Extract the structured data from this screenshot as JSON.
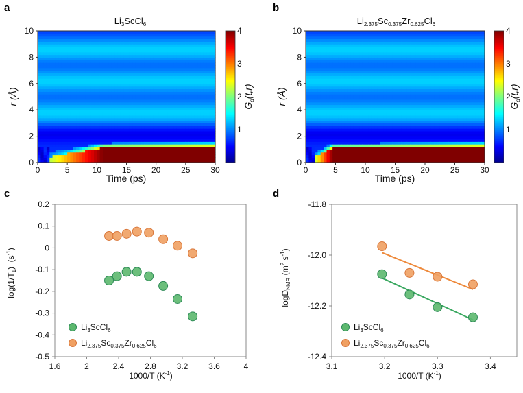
{
  "panel_labels": [
    "a",
    "b",
    "c",
    "d"
  ],
  "colors": {
    "green": "#5cb86e",
    "orange": "#f0a062",
    "green_line": "#3aa860",
    "orange_line": "#ee8a3c",
    "marker_edge_green": "#2e8b57",
    "marker_edge_orange": "#d9773a"
  },
  "species": {
    "s1": {
      "main": "Li",
      "sub1": "3",
      "main2": "ScCl",
      "sub2": "6"
    },
    "s2": {
      "parts": [
        "Li",
        "2.375",
        "Sc",
        "0.375",
        "Zr",
        "0.625",
        "Cl",
        "6"
      ]
    }
  },
  "chart_data": [
    {
      "panel": "a",
      "type": "heatmap",
      "title": "Li3ScCl6",
      "xlabel": "Time (ps)",
      "ylabel": "r (Å)",
      "xlim": [
        0,
        30
      ],
      "ylim": [
        0,
        10
      ],
      "xticks": [
        "0",
        "5",
        "10",
        "15",
        "20",
        "25",
        "30"
      ],
      "yticks": [
        "0",
        "2",
        "4",
        "6",
        "8",
        "10"
      ],
      "colorbar": {
        "label": "Gd(t,r)",
        "range": [
          0,
          4
        ],
        "ticks": [
          "4",
          "3",
          "2",
          "1"
        ],
        "colormap": "jet"
      },
      "band_centers_r": [
        0.5,
        3.8,
        6.2,
        8.6
      ],
      "front_time_ps": [
        2,
        11
      ]
    },
    {
      "panel": "b",
      "type": "heatmap",
      "title": "Li2.375Sc0.375Zr0.625Cl6",
      "xlabel": "Time (ps)",
      "ylabel": "r (Å)",
      "xlim": [
        0,
        30
      ],
      "ylim": [
        0,
        10
      ],
      "xticks": [
        "0",
        "5",
        "10",
        "15",
        "20",
        "25",
        "30"
      ],
      "yticks": [
        "0",
        "2",
        "4",
        "6",
        "8",
        "10"
      ],
      "colorbar": {
        "label": "Gd(t,r)",
        "range": [
          0,
          4
        ],
        "ticks": [
          "4",
          "3",
          "2",
          "1"
        ],
        "colormap": "jet"
      },
      "band_centers_r": [
        0.5,
        3.8,
        6.2,
        8.6
      ],
      "front_time_ps": [
        1.5,
        4.5
      ]
    },
    {
      "panel": "c",
      "type": "scatter",
      "xlabel": "1000/T (K⁻¹)",
      "ylabel": "log(1/T₁) (s⁻¹)",
      "xlim": [
        1.6,
        4.0
      ],
      "ylim": [
        -0.5,
        0.2
      ],
      "xticks": [
        "1.6",
        "2",
        "2.4",
        "2.8",
        "3.2",
        "3.6",
        "4"
      ],
      "yticks": [
        "0.2",
        "0.1",
        "0",
        "-0.1",
        "-0.2",
        "-0.3",
        "-0.4",
        "-0.5"
      ],
      "series": [
        {
          "name": "Li3ScCl6",
          "x": [
            2.28,
            2.38,
            2.5,
            2.63,
            2.78,
            2.96,
            3.14,
            3.33
          ],
          "y": [
            -0.15,
            -0.13,
            -0.11,
            -0.11,
            -0.13,
            -0.175,
            -0.235,
            -0.315
          ]
        },
        {
          "name": "Li2.375Sc0.375Zr0.625Cl6",
          "x": [
            2.28,
            2.38,
            2.5,
            2.63,
            2.78,
            2.96,
            3.14,
            3.33
          ],
          "y": [
            0.055,
            0.055,
            0.065,
            0.075,
            0.07,
            0.04,
            0.01,
            -0.025
          ]
        }
      ],
      "legend": "bottom-left"
    },
    {
      "panel": "d",
      "type": "scatter",
      "xlabel": "1000/T (K⁻¹)",
      "ylabel": "logD_NMR (m² s⁻¹)",
      "xlim": [
        3.1,
        3.45
      ],
      "ylim": [
        -12.4,
        -11.8
      ],
      "xticks": [
        "3.1",
        "3.2",
        "3.3",
        "3.4"
      ],
      "yticks": [
        "-11.8",
        "-12.0",
        "-12.2",
        "-12.4"
      ],
      "series": [
        {
          "name": "Li3ScCl6",
          "x": [
            3.195,
            3.247,
            3.3,
            3.367
          ],
          "y": [
            -12.075,
            -12.155,
            -12.205,
            -12.245
          ],
          "fit": {
            "x": [
              3.195,
              3.367
            ],
            "y": [
              -12.09,
              -12.255
            ]
          }
        },
        {
          "name": "Li2.375Sc0.375Zr0.625Cl6",
          "x": [
            3.195,
            3.247,
            3.3,
            3.367
          ],
          "y": [
            -11.965,
            -12.07,
            -12.085,
            -12.115
          ],
          "fit": {
            "x": [
              3.195,
              3.367
            ],
            "y": [
              -11.99,
              -12.135
            ]
          }
        }
      ],
      "legend": "bottom-left"
    }
  ]
}
